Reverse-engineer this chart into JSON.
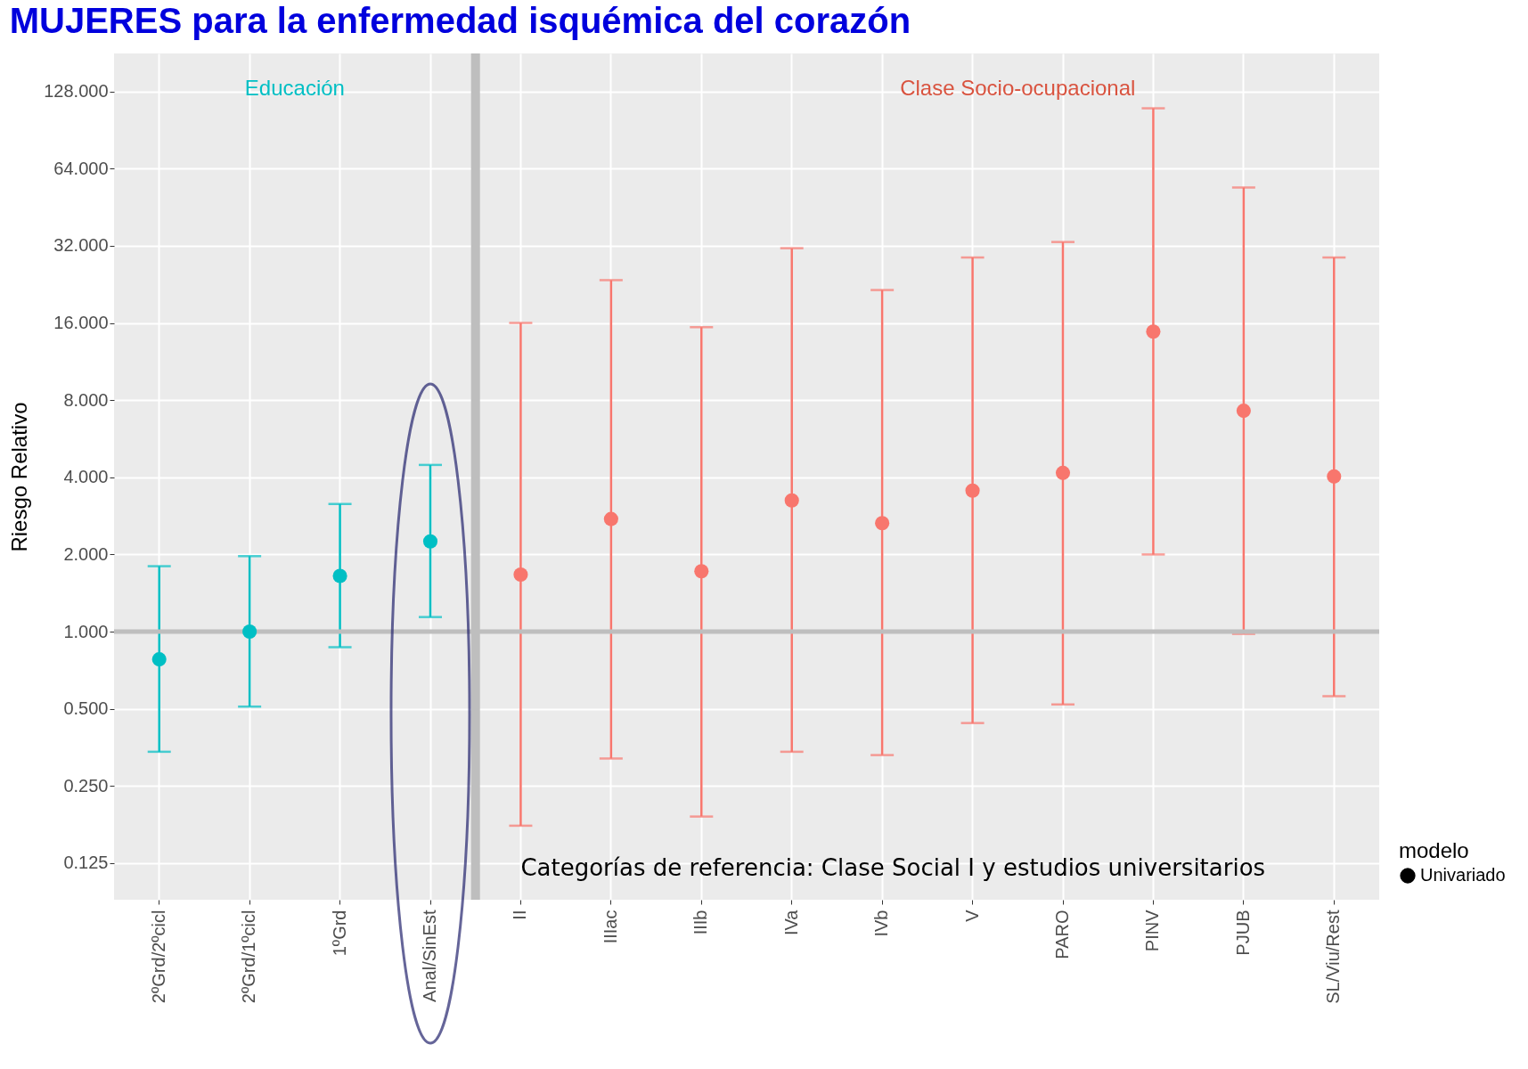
{
  "chart_data": {
    "type": "scatter",
    "title": "MUJERES para la enfermedad isquémica del corazón",
    "ylabel": "Riesgo Relativo",
    "legend_title": "modelo",
    "categories": [
      "2ºGrd/2ºcicl",
      "2ºGrd/1ºcicl",
      "1ºGrd",
      "Anal/SinEst",
      "II",
      "IIIac",
      "IIIb",
      "IVa",
      "IVb",
      "V",
      "PARO",
      "PINV",
      "PJUB",
      "SL/Viu/Rest"
    ],
    "series": [
      {
        "name": "Univariado",
        "colors": [
          "#00bfc4",
          "#00bfc4",
          "#00bfc4",
          "#00bfc4",
          "#f8766d",
          "#f8766d",
          "#f8766d",
          "#f8766d",
          "#f8766d",
          "#f8766d",
          "#f8766d",
          "#f8766d",
          "#f8766d",
          "#f8766d"
        ],
        "values": [
          0.78,
          1.0,
          1.65,
          2.25,
          1.67,
          2.75,
          1.72,
          3.25,
          2.65,
          3.55,
          4.16,
          14.8,
          7.27,
          4.03
        ],
        "errors": [
          [
            0.34,
            1.8
          ],
          [
            0.51,
            1.97
          ],
          [
            0.87,
            3.15
          ],
          [
            1.14,
            4.47
          ],
          [
            0.175,
            16.0
          ],
          [
            0.32,
            23.5
          ],
          [
            0.19,
            15.4
          ],
          [
            0.34,
            31.3
          ],
          [
            0.33,
            21.5
          ],
          [
            0.44,
            28.8
          ],
          [
            0.52,
            33.1
          ],
          [
            2.0,
            110
          ],
          [
            0.98,
            54
          ],
          [
            0.56,
            28.8
          ]
        ]
      }
    ],
    "log": "y",
    "ylim": [
      0.09,
      180
    ],
    "yticks": [
      {
        "value": 0.125,
        "label": "0.125"
      },
      {
        "value": 0.25,
        "label": "0.250"
      },
      {
        "value": 0.5,
        "label": "0.500"
      },
      {
        "value": 1,
        "label": "1.000"
      },
      {
        "value": 2,
        "label": "2.000"
      },
      {
        "value": 4,
        "label": "4.000"
      },
      {
        "value": 8,
        "label": "8.000"
      },
      {
        "value": 16,
        "label": "16.000"
      },
      {
        "value": 32,
        "label": "32.000"
      },
      {
        "value": 64,
        "label": "64.000"
      },
      {
        "value": 128,
        "label": "128.000"
      }
    ],
    "ref_lines": [
      {
        "axis": "y",
        "value": 1,
        "color": "#bebebe"
      },
      {
        "axis": "x",
        "value": "II",
        "color": "#bebebe"
      }
    ],
    "annotations": [
      "Educación",
      "Clase Socio-ocupacional",
      "Categorías de referencia: Clase Social I y estudios universitarios"
    ],
    "grid": true,
    "legend": "bottom right",
    "marker": "circle"
  }
}
